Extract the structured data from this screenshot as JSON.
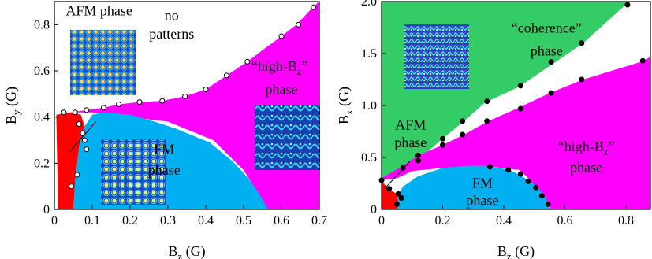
{
  "chart_data": [
    {
      "type": "phase-diagram",
      "xlabel": {
        "main": "B",
        "sub": "z",
        "unit": " (G)"
      },
      "ylabel": {
        "main": "B",
        "sub": "y",
        "unit": " (G)"
      },
      "xlim": [
        0,
        0.7
      ],
      "ylim": [
        0,
        0.9
      ],
      "xticks": [
        "0",
        "0.1",
        "0.2",
        "0.3",
        "0.4",
        "0.5",
        "0.6",
        "0.7"
      ],
      "xtick_values": [
        0,
        0.1,
        0.2,
        0.3,
        0.4,
        0.5,
        0.6,
        0.7
      ],
      "yticks": [
        "0",
        "0.2",
        "0.4",
        "0.6",
        "0.8"
      ],
      "ytick_values": [
        0,
        0.2,
        0.4,
        0.6,
        0.8
      ],
      "regions": [
        {
          "name": "high-Bz",
          "color": "#ff00ff",
          "polygon": [
            [
              0.04,
              0.42
            ],
            [
              0.085,
              0.43
            ],
            [
              0.13,
              0.44
            ],
            [
              0.17,
              0.455
            ],
            [
              0.225,
              0.465
            ],
            [
              0.285,
              0.47
            ],
            [
              0.345,
              0.49
            ],
            [
              0.4,
              0.52
            ],
            [
              0.455,
              0.58
            ],
            [
              0.51,
              0.64
            ],
            [
              0.55,
              0.69
            ],
            [
              0.6,
              0.75
            ],
            [
              0.64,
              0.8
            ],
            [
              0.68,
              0.87
            ],
            [
              0.7,
              0.9
            ],
            [
              0.7,
              0
            ],
            [
              0.565,
              0
            ],
            [
              0.5,
              0.17
            ],
            [
              0.42,
              0.3
            ],
            [
              0.3,
              0.38
            ],
            [
              0.2,
              0.4
            ],
            [
              0.1,
              0.42
            ]
          ]
        },
        {
          "name": "FM",
          "color": "#00b0f0",
          "polygon": [
            [
              0.05,
              0
            ],
            [
              0.055,
              0.13
            ],
            [
              0.065,
              0.27
            ],
            [
              0.08,
              0.36
            ],
            [
              0.1,
              0.41
            ],
            [
              0.13,
              0.42
            ],
            [
              0.2,
              0.41
            ],
            [
              0.265,
              0.38
            ],
            [
              0.32,
              0.35
            ],
            [
              0.41,
              0.29
            ],
            [
              0.47,
              0.21
            ],
            [
              0.51,
              0.14
            ],
            [
              0.54,
              0.07
            ],
            [
              0.565,
              0
            ]
          ]
        },
        {
          "name": "AFM",
          "color": "#ff0000",
          "polygon": [
            [
              0.01,
              0
            ],
            [
              0.005,
              0.41
            ],
            [
              0.045,
              0.42
            ],
            [
              0.07,
              0.41
            ],
            [
              0.08,
              0.36
            ],
            [
              0.065,
              0.27
            ],
            [
              0.055,
              0.13
            ],
            [
              0.05,
              0
            ]
          ]
        }
      ],
      "boundary_points": [
        [
          0.025,
          0.42
        ],
        [
          0.085,
          0.43
        ],
        [
          0.13,
          0.44
        ],
        [
          0.17,
          0.455
        ],
        [
          0.225,
          0.465
        ],
        [
          0.285,
          0.47
        ],
        [
          0.345,
          0.49
        ],
        [
          0.4,
          0.52
        ],
        [
          0.455,
          0.58
        ],
        [
          0.51,
          0.64
        ],
        [
          0.6,
          0.75
        ],
        [
          0.645,
          0.8
        ],
        [
          0.685,
          0.875
        ],
        [
          0.055,
          0.42
        ],
        [
          0.065,
          0.37
        ],
        [
          0.075,
          0.33
        ],
        [
          0.08,
          0.3
        ],
        [
          0.085,
          0.26
        ],
        [
          0.06,
          0.15
        ],
        [
          0.045,
          0.1
        ]
      ],
      "labels": [
        {
          "text": "AFM phase",
          "x": 0.03,
          "y": 0.84
        },
        {
          "text": "no",
          "x": 0.31,
          "y": 0.82
        },
        {
          "text": "patterns",
          "x": 0.31,
          "y": 0.74
        },
        {
          "text": "high-Bz phase line 1",
          "display": "“high-B",
          "sub": "z",
          "close": "”",
          "x": 0.595,
          "y": 0.6
        },
        {
          "text": "phase",
          "x": 0.6,
          "y": 0.5
        },
        {
          "text": "FM",
          "x": 0.29,
          "y": 0.24
        },
        {
          "text": "phase",
          "x": 0.29,
          "y": 0.15
        }
      ]
    },
    {
      "type": "phase-diagram",
      "xlabel": {
        "main": "B",
        "sub": "z",
        "unit": " (G)"
      },
      "ylabel": {
        "main": "B",
        "sub": "x",
        "unit": " (G)"
      },
      "xlim": [
        0,
        0.88
      ],
      "ylim": [
        0,
        2.0
      ],
      "xticks": [
        "0",
        "0.2",
        "0.4",
        "0.6",
        "0.8"
      ],
      "xtick_values": [
        0,
        0.2,
        0.4,
        0.6,
        0.8
      ],
      "yticks": [
        "0",
        "0.5",
        "1.0",
        "1.5",
        "2.0"
      ],
      "ytick_values": [
        0,
        0.5,
        1.0,
        1.5,
        2.0
      ],
      "regions": [
        {
          "name": "coherence",
          "color": "#33cc66",
          "polygon": [
            [
              0,
              2.0
            ],
            [
              0.81,
              2.0
            ],
            [
              0.66,
              1.6
            ],
            [
              0.56,
              1.4
            ],
            [
              0.45,
              1.18
            ],
            [
              0.34,
              1.03
            ],
            [
              0.27,
              0.85
            ],
            [
              0.2,
              0.68
            ],
            [
              0.12,
              0.48
            ],
            [
              0.07,
              0.38
            ],
            [
              0,
              0.3
            ]
          ]
        },
        {
          "name": "high-Bz",
          "color": "#ff00ff",
          "polygon": [
            [
              0.88,
              1.47
            ],
            [
              0.86,
              1.43
            ],
            [
              0.66,
              1.25
            ],
            [
              0.55,
              1.12
            ],
            [
              0.45,
              0.98
            ],
            [
              0.35,
              0.85
            ],
            [
              0.27,
              0.72
            ],
            [
              0.2,
              0.62
            ],
            [
              0.12,
              0.52
            ],
            [
              0.07,
              0.42
            ],
            [
              0.0,
              0.3
            ],
            [
              0.0,
              0.28
            ],
            [
              0.05,
              0.3
            ],
            [
              0.1,
              0.37
            ],
            [
              0.2,
              0.4
            ],
            [
              0.33,
              0.42
            ],
            [
              0.45,
              0.38
            ],
            [
              0.48,
              0.3
            ],
            [
              0.52,
              0.15
            ],
            [
              0.55,
              0.05
            ],
            [
              0.55,
              0
            ],
            [
              0.88,
              0
            ]
          ]
        },
        {
          "name": "FM",
          "color": "#00b0f0",
          "polygon": [
            [
              0.05,
              0
            ],
            [
              0.05,
              0.12
            ],
            [
              0.07,
              0.22
            ],
            [
              0.12,
              0.32
            ],
            [
              0.2,
              0.4
            ],
            [
              0.28,
              0.42
            ],
            [
              0.34,
              0.42
            ],
            [
              0.42,
              0.38
            ],
            [
              0.47,
              0.3
            ],
            [
              0.51,
              0.22
            ],
            [
              0.54,
              0.1
            ],
            [
              0.55,
              0
            ]
          ]
        },
        {
          "name": "AFM",
          "color": "#ff0000",
          "polygon": [
            [
              0,
              0
            ],
            [
              0,
              0.28
            ],
            [
              0.02,
              0.2
            ],
            [
              0.05,
              0.15
            ],
            [
              0.055,
              0.05
            ],
            [
              0.05,
              0
            ]
          ]
        }
      ],
      "boundary_points": [
        [
          0.805,
          1.97
        ],
        [
          0.655,
          1.6
        ],
        [
          0.555,
          1.42
        ],
        [
          0.455,
          1.19
        ],
        [
          0.345,
          1.04
        ],
        [
          0.265,
          0.85
        ],
        [
          0.2,
          0.68
        ],
        [
          0.12,
          0.47
        ],
        [
          0.07,
          0.4
        ],
        [
          0.855,
          1.43
        ],
        [
          0.655,
          1.25
        ],
        [
          0.555,
          1.12
        ],
        [
          0.455,
          0.97
        ],
        [
          0.345,
          0.85
        ],
        [
          0.265,
          0.72
        ],
        [
          0.2,
          0.62
        ],
        [
          0.12,
          0.52
        ],
        [
          0.355,
          0.41
        ],
        [
          0.415,
          0.38
        ],
        [
          0.455,
          0.34
        ],
        [
          0.48,
          0.27
        ],
        [
          0.505,
          0.21
        ],
        [
          0.525,
          0.13
        ],
        [
          0.545,
          0.05
        ],
        [
          0.0,
          0.28
        ],
        [
          0.025,
          0.2
        ],
        [
          0.055,
          0.15
        ],
        [
          0.065,
          0.11
        ],
        [
          0.05,
          0.05
        ]
      ],
      "labels": [
        {
          "text": "“coherence”",
          "x": 0.54,
          "y": 1.7
        },
        {
          "text": "phase",
          "x": 0.54,
          "y": 1.48
        },
        {
          "text": "AFM",
          "x": 0.095,
          "y": 0.77
        },
        {
          "text": "phase",
          "x": 0.095,
          "y": 0.6
        },
        {
          "text": "FM",
          "x": 0.33,
          "y": 0.21
        },
        {
          "text": "phase",
          "x": 0.33,
          "y": 0.04
        },
        {
          "text": "high-Bz",
          "display": "“high-B",
          "sub": "z",
          "close": "”",
          "x": 0.67,
          "y": 0.56
        },
        {
          "text": "phase",
          "x": 0.67,
          "y": 0.36
        }
      ]
    }
  ]
}
